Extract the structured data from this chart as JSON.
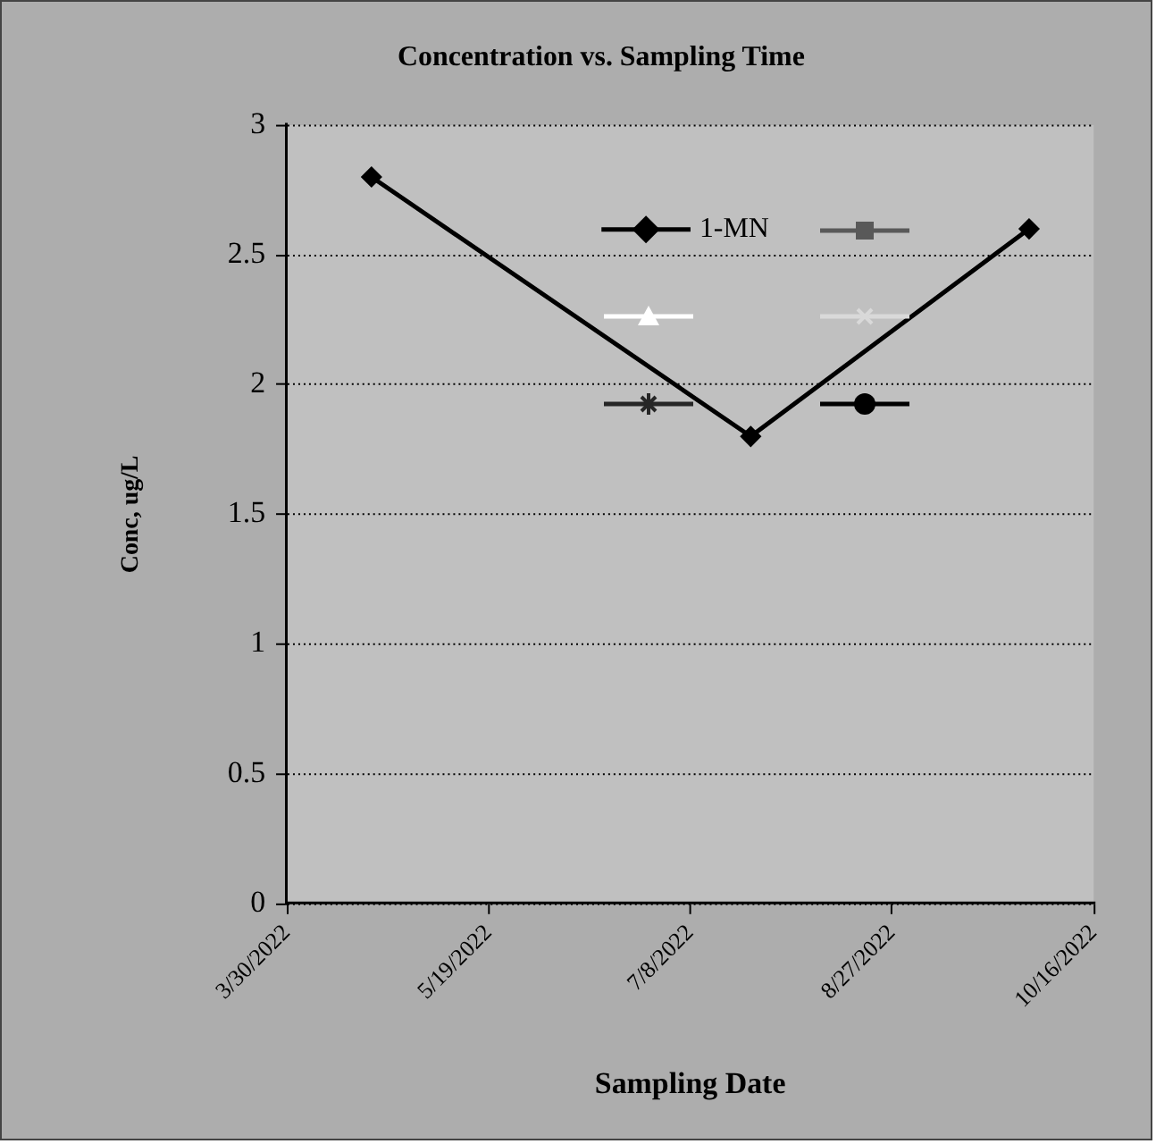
{
  "chart_data": {
    "type": "line",
    "title": "Concentration vs. Sampling Time",
    "xlabel": "Sampling Date",
    "ylabel": "Conc, ug/L",
    "x": [
      "2022-04-20",
      "2022-07-23",
      "2022-09-30"
    ],
    "series": [
      {
        "name": "1-MN",
        "color": "#000000",
        "marker": "diamond",
        "values": [
          2.8,
          1.8,
          2.6
        ]
      }
    ],
    "xlim": [
      "2022-03-30",
      "2022-10-16"
    ],
    "xticks": [
      {
        "value": "2022-03-30",
        "label": "3/30/2022"
      },
      {
        "value": "2022-05-19",
        "label": "5/19/2022"
      },
      {
        "value": "2022-07-08",
        "label": "7/8/2022"
      },
      {
        "value": "2022-08-27",
        "label": "8/27/2022"
      },
      {
        "value": "2022-10-16",
        "label": "10/16/2022"
      }
    ],
    "ylim": [
      0,
      3
    ],
    "yticks": [
      0,
      0.5,
      1,
      1.5,
      2,
      2.5,
      3
    ],
    "grid": "y",
    "legend": "top right",
    "line_style": "solid"
  }
}
